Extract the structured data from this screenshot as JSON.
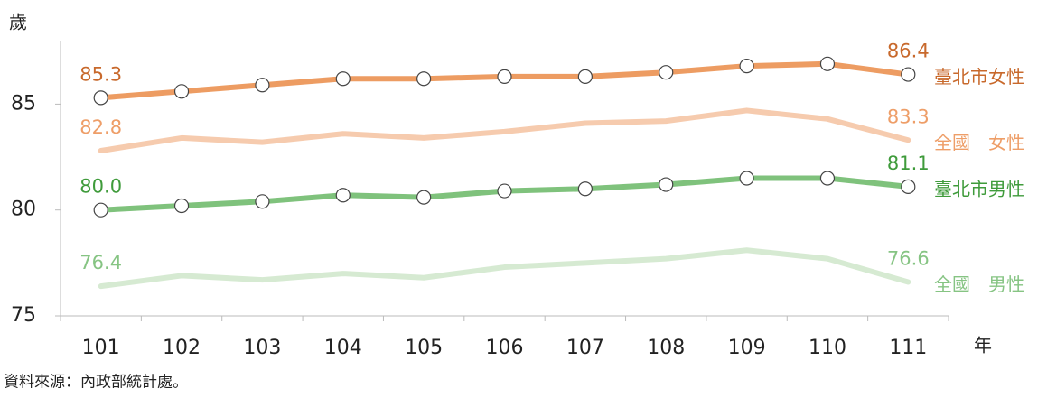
{
  "chart_data": {
    "type": "line",
    "y_label": "歲",
    "x_label": "年",
    "source": "資料來源：內政部統計處。",
    "categories": [
      "101",
      "102",
      "103",
      "104",
      "105",
      "106",
      "107",
      "108",
      "109",
      "110",
      "111"
    ],
    "ylim": [
      75,
      88
    ],
    "yticks": [
      75,
      80,
      85
    ],
    "series": [
      {
        "name": "臺北市女性",
        "color": "#ED9C62",
        "label_color": "#C8692C",
        "markers": true,
        "values": [
          85.3,
          85.6,
          85.9,
          86.2,
          86.2,
          86.3,
          86.3,
          86.5,
          86.8,
          86.9,
          86.4
        ],
        "value_labels": [
          "85.3",
          null,
          null,
          null,
          null,
          null,
          null,
          null,
          null,
          null,
          "86.4"
        ]
      },
      {
        "name": "全國　女性",
        "color": "#F6CBAE",
        "label_color": "#EE9E68",
        "markers": false,
        "values": [
          82.8,
          83.4,
          83.2,
          83.6,
          83.4,
          83.7,
          84.1,
          84.2,
          84.7,
          84.3,
          83.3
        ],
        "value_labels": [
          "82.8",
          null,
          null,
          null,
          null,
          null,
          null,
          null,
          null,
          null,
          "83.3"
        ]
      },
      {
        "name": "臺北市男性",
        "color": "#7FC27C",
        "label_color": "#3F9B3B",
        "markers": true,
        "values": [
          80.0,
          80.2,
          80.4,
          80.7,
          80.6,
          80.9,
          81.0,
          81.2,
          81.5,
          81.5,
          81.1
        ],
        "value_labels": [
          "80.0",
          null,
          null,
          null,
          null,
          null,
          null,
          null,
          null,
          null,
          "81.1"
        ]
      },
      {
        "name": "全國　男性",
        "color": "#D6EAD2",
        "label_color": "#86C483",
        "markers": false,
        "values": [
          76.4,
          76.9,
          76.7,
          77.0,
          76.8,
          77.3,
          77.5,
          77.7,
          78.1,
          77.7,
          76.6
        ],
        "value_labels": [
          "76.4",
          null,
          null,
          null,
          null,
          null,
          null,
          null,
          null,
          null,
          "76.6"
        ]
      }
    ]
  }
}
